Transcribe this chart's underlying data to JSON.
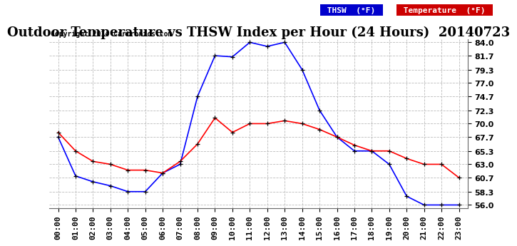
{
  "title": "Outdoor Temperature vs THSW Index per Hour (24 Hours)  20140723",
  "copyright": "Copyright 2014 Cartronics.com",
  "background_color": "#ffffff",
  "plot_bg_color": "#ffffff",
  "grid_color": "#bbbbbb",
  "hours": [
    "00:00",
    "01:00",
    "02:00",
    "03:00",
    "04:00",
    "05:00",
    "06:00",
    "07:00",
    "08:00",
    "09:00",
    "10:00",
    "11:00",
    "12:00",
    "13:00",
    "14:00",
    "15:00",
    "16:00",
    "17:00",
    "18:00",
    "19:00",
    "20:00",
    "21:00",
    "22:00",
    "23:00"
  ],
  "thsw": [
    67.7,
    61.0,
    60.0,
    59.3,
    58.3,
    58.3,
    61.5,
    63.0,
    74.7,
    81.7,
    81.5,
    84.0,
    83.3,
    84.0,
    79.3,
    72.3,
    67.7,
    65.3,
    65.3,
    63.0,
    57.5,
    56.0,
    56.0,
    56.0
  ],
  "temperature": [
    68.5,
    65.3,
    63.5,
    63.0,
    62.0,
    62.0,
    61.5,
    63.5,
    66.5,
    71.0,
    68.5,
    70.0,
    70.0,
    70.5,
    70.0,
    69.0,
    67.7,
    66.3,
    65.3,
    65.3,
    64.0,
    63.0,
    63.0,
    60.7
  ],
  "thsw_color": "#0000ff",
  "temp_color": "#ff0000",
  "ylim_min": 56.0,
  "ylim_max": 84.0,
  "yticks": [
    56.0,
    58.3,
    60.7,
    63.0,
    65.3,
    67.7,
    70.0,
    72.3,
    74.7,
    77.0,
    79.3,
    81.7,
    84.0
  ],
  "legend_thsw_bg": "#0000cc",
  "legend_temp_bg": "#cc0000",
  "title_fontsize": 13,
  "copyright_fontsize": 7,
  "tick_fontsize": 8
}
